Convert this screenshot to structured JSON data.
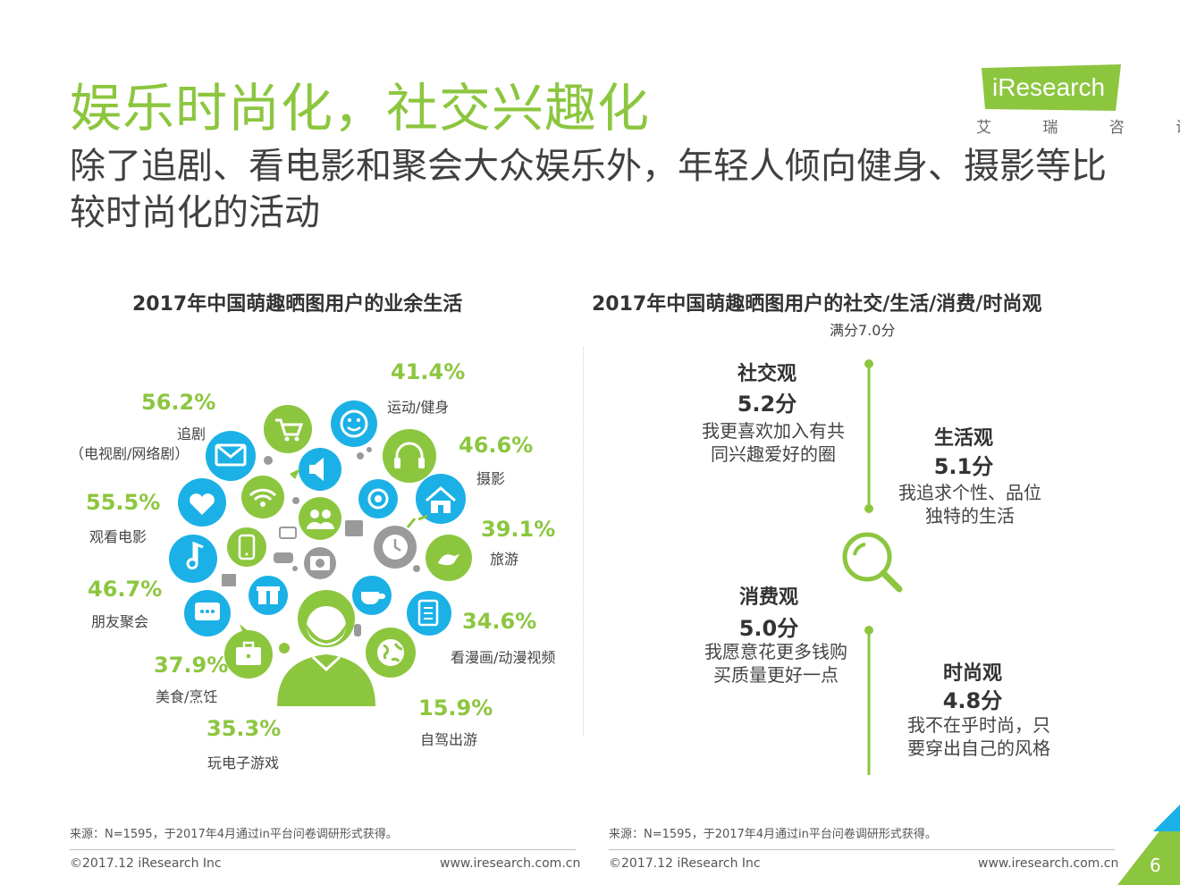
{
  "title": "娱乐时尚化，社交兴趣化",
  "subtitle": "除了追剧、看电影和聚会大众娱乐外，年轻人倾向健身、摄影等比较时尚化的活动",
  "logo": {
    "text": "iResearch",
    "sub": "艾 瑞 咨 询",
    "color": "#8cc63f"
  },
  "left_chart": {
    "title": "2017年中国萌趣晒图用户的业余生活",
    "items": [
      {
        "pct": "56.2%",
        "label": "追剧",
        "label2": "（电视剧/网络剧）"
      },
      {
        "pct": "55.5%",
        "label": "观看电影"
      },
      {
        "pct": "46.7%",
        "label": "朋友聚会"
      },
      {
        "pct": "37.9%",
        "label": "美食/烹饪"
      },
      {
        "pct": "35.3%",
        "label": "玩电子游戏"
      },
      {
        "pct": "41.4%",
        "label": "运动/健身"
      },
      {
        "pct": "46.6%",
        "label": "摄影"
      },
      {
        "pct": "39.1%",
        "label": "旅游"
      },
      {
        "pct": "34.6%",
        "label": "看漫画/动漫视频"
      },
      {
        "pct": "15.9%",
        "label": "自驾出游"
      }
    ]
  },
  "right_chart": {
    "title": "2017年中国萌趣晒图用户的社交/生活/消费/时尚观",
    "note": "满分7.0分",
    "views": [
      {
        "title": "社交观",
        "score": "5.2分",
        "desc1": "我更喜欢加入有共",
        "desc2": "同兴趣爱好的圈"
      },
      {
        "title": "生活观",
        "score": "5.1分",
        "desc1": "我追求个性、品位",
        "desc2": "独特的生活"
      },
      {
        "title": "消费观",
        "score": "5.0分",
        "desc1": "我愿意花更多钱购",
        "desc2": "买质量更好一点"
      },
      {
        "title": "时尚观",
        "score": "4.8分",
        "desc1": "我不在乎时尚，只",
        "desc2": "要穿出自己的风格"
      }
    ]
  },
  "footer": {
    "source": "来源：N=1595，于2017年4月通过in平台问卷调研形式获得。",
    "copyright": "©2017.12 iResearch Inc",
    "url": "www.iresearch.com.cn",
    "page": "6"
  },
  "colors": {
    "green": "#8cc63f",
    "blue": "#1bb1e6",
    "gray": "#9a9a9a"
  },
  "icons": [
    "shopping-cart-icon",
    "smiley-icon",
    "headphones-icon",
    "mail-icon",
    "megaphone-icon",
    "at-icon",
    "home-icon",
    "heart-icon",
    "wifi-icon",
    "people-icon",
    "music-icon",
    "phone-icon",
    "clock-icon",
    "bird-icon",
    "camera-icon",
    "coffee-icon",
    "notebook-icon",
    "chat-icon",
    "gift-icon",
    "globe-icon",
    "briefcase-icon",
    "user-avatar-icon",
    "search-magnifier-icon"
  ]
}
